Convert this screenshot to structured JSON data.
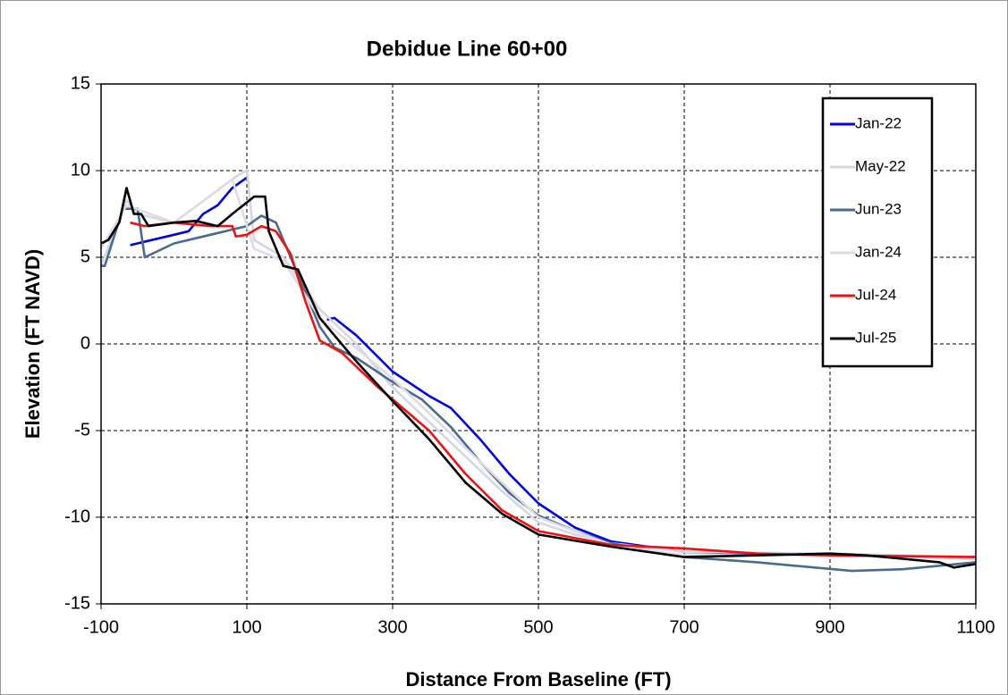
{
  "chart_data": {
    "type": "line",
    "title": "Debidue Line 60+00",
    "xlabel": "Distance From Baseline (FT)",
    "ylabel": "Elevation (FT NAVD)",
    "xlim": [
      -100,
      1100
    ],
    "ylim": [
      -15,
      15
    ],
    "xticks": [
      -100,
      100,
      300,
      500,
      700,
      900,
      1100
    ],
    "yticks": [
      -15,
      -10,
      -5,
      0,
      5,
      10,
      15
    ],
    "grid": true,
    "legend": "upper right",
    "series": [
      {
        "name": "Jan-22",
        "color": "#0000e0",
        "x": [
          -60,
          0,
          20,
          40,
          60,
          70,
          80,
          100,
          null,
          210,
          220,
          250,
          300,
          350,
          380,
          420,
          460,
          500,
          550,
          600,
          700,
          800,
          900,
          1100
        ],
        "values": [
          5.7,
          6.3,
          6.5,
          7.5,
          8,
          8.5,
          9,
          9.6,
          null,
          1.4,
          1.5,
          0.5,
          -1.6,
          -3,
          -3.7,
          -5.5,
          -7.5,
          -9.2,
          -10.6,
          -11.4,
          -12,
          -12.1,
          -12.2,
          -12.3
        ]
      },
      {
        "name": "May-22",
        "color": "#d4d6e2",
        "x": [
          -100,
          -65,
          -50,
          0,
          90,
          100,
          110,
          150,
          200,
          250,
          300,
          350,
          400,
          450,
          500,
          550,
          600,
          700,
          900,
          1100
        ],
        "values": [
          4.5,
          8.3,
          7.5,
          7,
          9.8,
          10,
          6,
          5,
          2,
          0,
          -2.5,
          -4.5,
          -6.5,
          -8.5,
          -10.3,
          -11,
          -11.5,
          -12,
          -12.1,
          -12.3
        ]
      },
      {
        "name": "Jun-23",
        "color": "#4a6a90",
        "x": [
          -100,
          -95,
          -70,
          -50,
          -40,
          0,
          50,
          100,
          120,
          140,
          160,
          200,
          220,
          250,
          300,
          340,
          380,
          420,
          460,
          500,
          550,
          600,
          700,
          800,
          930,
          1000,
          1100
        ],
        "values": [
          4.5,
          4.5,
          7.8,
          7.8,
          5,
          5.8,
          6.3,
          6.8,
          7.4,
          7,
          5,
          1,
          -0.2,
          -0.8,
          -2.2,
          -3.2,
          -4.8,
          -6.8,
          -8.6,
          -9.9,
          -10.8,
          -11.5,
          -12.3,
          -12.6,
          -13.1,
          -13,
          -12.6
        ]
      },
      {
        "name": "Jan-24",
        "color": "#dcdce4",
        "x": [
          -100,
          -65,
          0,
          80,
          110,
          150,
          200,
          300,
          400,
          500,
          600,
          700,
          900,
          1100
        ],
        "values": [
          5.5,
          8,
          7,
          9.5,
          5.5,
          4.8,
          1.5,
          -2,
          -6,
          -10,
          -11.6,
          -12.2,
          -12.2,
          -12.4
        ]
      },
      {
        "name": "Jul-24",
        "color": "#ee1111",
        "x": [
          -60,
          -40,
          0,
          50,
          80,
          85,
          100,
          120,
          140,
          160,
          180,
          200,
          230,
          280,
          300,
          350,
          400,
          450,
          500,
          600,
          700,
          800,
          900,
          1100
        ],
        "values": [
          7,
          6.8,
          7,
          6.8,
          6.8,
          6.2,
          6.3,
          6.8,
          6.5,
          5.2,
          2.5,
          0.2,
          -0.5,
          -2.5,
          -3.2,
          -5,
          -7.5,
          -9.6,
          -10.8,
          -11.6,
          -11.8,
          -12.1,
          -12.2,
          -12.3
        ]
      },
      {
        "name": "Jul-25",
        "color": "#000000",
        "x": [
          -100,
          -90,
          -75,
          -65,
          -55,
          -45,
          -35,
          0,
          30,
          60,
          80,
          110,
          125,
          130,
          150,
          170,
          200,
          250,
          300,
          350,
          400,
          450,
          500,
          600,
          700,
          800,
          900,
          950,
          1050,
          1070,
          1100
        ],
        "values": [
          5.8,
          6,
          7,
          9,
          7.5,
          7.5,
          6.8,
          7,
          7.1,
          6.8,
          7.5,
          8.5,
          8.5,
          6.5,
          4.5,
          4.3,
          1.5,
          -1,
          -3.3,
          -5.5,
          -8,
          -9.8,
          -11,
          -11.7,
          -12.3,
          -12.2,
          -12.1,
          -12.2,
          -12.6,
          -12.9,
          -12.7
        ]
      }
    ]
  }
}
